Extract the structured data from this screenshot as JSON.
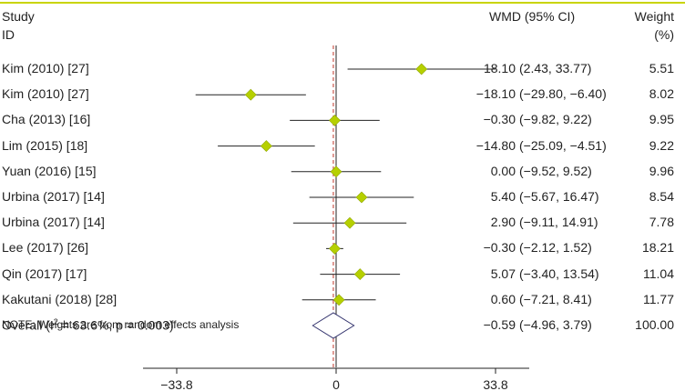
{
  "chart_data": {
    "type": "forest",
    "title": "",
    "header": {
      "study_line1": "Study",
      "study_line2": "ID",
      "effect_label": "WMD (95% CI)",
      "weight_line1": "Weight",
      "weight_line2": "(%)"
    },
    "studies": [
      {
        "label": "Kim (2010) [27]",
        "wmd": 18.1,
        "lo": 2.43,
        "hi": 33.77,
        "wmd_text": "18.10",
        "ci_text": "(2.43, 33.77)",
        "weight": "5.51"
      },
      {
        "label": "Kim (2010) [27]",
        "wmd": -18.1,
        "lo": -29.8,
        "hi": -6.4,
        "wmd_text": "−18.10",
        "ci_text": "(−29.80, −6.40)",
        "weight": "8.02"
      },
      {
        "label": "Cha (2013) [16]",
        "wmd": -0.3,
        "lo": -9.82,
        "hi": 9.22,
        "wmd_text": "−0.30",
        "ci_text": "(−9.82, 9.22)",
        "weight": "9.95"
      },
      {
        "label": "Lim (2015) [18]",
        "wmd": -14.8,
        "lo": -25.09,
        "hi": -4.51,
        "wmd_text": "−14.80",
        "ci_text": "(−25.09, −4.51)",
        "weight": "9.22"
      },
      {
        "label": "Yuan (2016) [15]",
        "wmd": 0.0,
        "lo": -9.52,
        "hi": 9.52,
        "wmd_text": "0.00",
        "ci_text": "(−9.52, 9.52)",
        "weight": "9.96"
      },
      {
        "label": "Urbina (2017) [14]",
        "wmd": 5.4,
        "lo": -5.67,
        "hi": 16.47,
        "wmd_text": "5.40",
        "ci_text": "(−5.67, 16.47)",
        "weight": "8.54"
      },
      {
        "label": "Urbina (2017) [14]",
        "wmd": 2.9,
        "lo": -9.11,
        "hi": 14.91,
        "wmd_text": "2.90",
        "ci_text": "(−9.11, 14.91)",
        "weight": "7.78"
      },
      {
        "label": "Lee (2017) [26]",
        "wmd": -0.3,
        "lo": -2.12,
        "hi": 1.52,
        "wmd_text": "−0.30",
        "ci_text": "(−2.12, 1.52)",
        "weight": "18.21"
      },
      {
        "label": "Qin (2017) [17]",
        "wmd": 5.07,
        "lo": -3.4,
        "hi": 13.54,
        "wmd_text": "5.07",
        "ci_text": "(−3.40, 13.54)",
        "weight": "11.04"
      },
      {
        "label": "Kakutani (2018) [28]",
        "wmd": 0.6,
        "lo": -7.21,
        "hi": 8.41,
        "wmd_text": "0.60",
        "ci_text": "(−7.21, 8.41)",
        "weight": "11.77"
      }
    ],
    "overall": {
      "label_prefix": "Overall (I",
      "label_sup": "2",
      "label_suffix": " = 63.6%, p = 0.003)",
      "wmd": -0.59,
      "lo": -4.96,
      "hi": 3.79,
      "wmd_text": "−0.59",
      "ci_text": "(−4.96, 3.79)",
      "weight": "100.00"
    },
    "note": "NOTE: Weights are from random effects analysis",
    "x_axis": {
      "ticks": [
        {
          "value": -33.8,
          "label": "−33.8"
        },
        {
          "value": 0,
          "label": "0"
        },
        {
          "value": 33.8,
          "label": "33.8"
        }
      ],
      "range": [
        -45,
        45
      ]
    },
    "colors": {
      "marker": "#b6d000",
      "marker_edge": "#8fa600",
      "ci_line": "#222222",
      "null_line": "#222222",
      "overall_line": "#c0392b",
      "diamond": "#34346e",
      "top_rule": "#c9d400"
    }
  }
}
